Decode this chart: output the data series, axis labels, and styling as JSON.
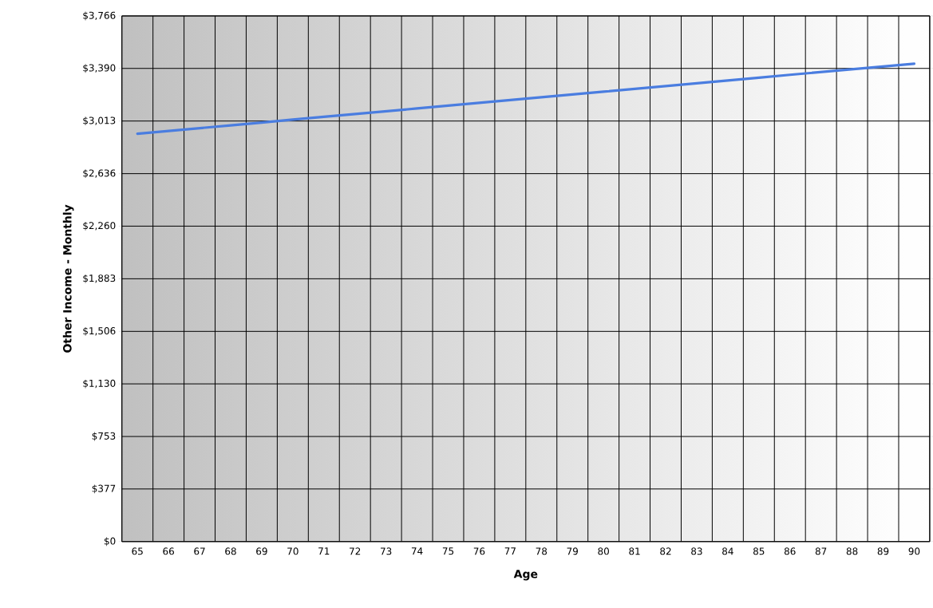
{
  "chart_data": {
    "type": "line",
    "xlabel": "Age",
    "ylabel": "Other Income - Monthly",
    "categories": [
      "65",
      "66",
      "67",
      "68",
      "69",
      "70",
      "71",
      "72",
      "73",
      "74",
      "75",
      "76",
      "77",
      "78",
      "79",
      "80",
      "81",
      "82",
      "83",
      "84",
      "85",
      "86",
      "87",
      "88",
      "89",
      "90"
    ],
    "series": [
      {
        "color": "#4a7de0",
        "values": [
          2922,
          2942,
          2962,
          2982,
          3002,
          3023,
          3043,
          3063,
          3083,
          3103,
          3123,
          3143,
          3163,
          3183,
          3203,
          3223,
          3243,
          3263,
          3283,
          3303,
          3323,
          3344,
          3364,
          3384,
          3404,
          3424
        ]
      }
    ],
    "ylim": [
      0,
      3766
    ],
    "yticks": [
      {
        "value": 0,
        "label": "$0"
      },
      {
        "value": 377,
        "label": "$377"
      },
      {
        "value": 753,
        "label": "$753"
      },
      {
        "value": 1130,
        "label": "$1,130"
      },
      {
        "value": 1506,
        "label": "$1,506"
      },
      {
        "value": 1883,
        "label": "$1,883"
      },
      {
        "value": 2260,
        "label": "$2,260"
      },
      {
        "value": 2636,
        "label": "$2,636"
      },
      {
        "value": 3013,
        "label": "$3,013"
      },
      {
        "value": 3390,
        "label": "$3,390"
      },
      {
        "value": 3766,
        "label": "$3,766"
      }
    ],
    "grid": true,
    "marker": "none",
    "line_style": "solid"
  }
}
